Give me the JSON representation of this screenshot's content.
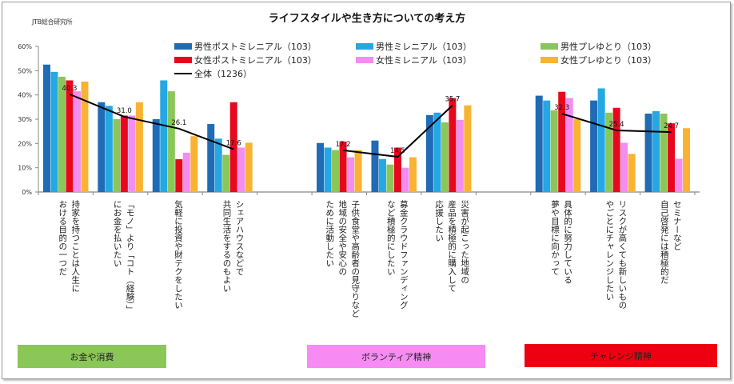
{
  "header": {
    "source": "JTB総合研究所",
    "title": "ライフスタイルや生き方についての考え方"
  },
  "chart_data": {
    "type": "bar",
    "title": "ライフスタイルや生き方についての考え方",
    "xlabel": "",
    "ylabel": "",
    "ylim": [
      0,
      60
    ],
    "yticks": [
      "0%",
      "10%",
      "20%",
      "30%",
      "40%",
      "50%",
      "60%"
    ],
    "grid": false,
    "legend_position": "top",
    "categories": [
      "持家を持つことは人生に\nおける目的の一つだ",
      "「モノ」より「コト（経験）」\nにお金を払いたい",
      "気軽に投資や財テクをしたい",
      "シェアハウスなどで\n共同生活をするのもよい",
      "",
      "子供食堂や高齢者の見守りなど\n地域の安全や安心の\nために活動したい",
      "募金クラウドファンディング\nなど積極的にしたい",
      "災害が起こった地域の\n産品を積極的に購入して\n応援したい",
      "",
      "具体的に努力している\n夢や目標に向かって",
      "リスクが高くても新しいもの\nやごとにチャレンジしたい",
      "セミナーなど\n自己啓発には積極的だ"
    ],
    "series": [
      {
        "name": "男性ポストミレニアル（103）",
        "color": "#1f6bb5",
        "kind": "bar",
        "values": [
          52.5,
          37.0,
          30.0,
          28.0,
          null,
          20.2,
          21.2,
          31.7,
          null,
          39.7,
          37.7,
          32.3
        ]
      },
      {
        "name": "男性ミレニアル（103）",
        "color": "#25a7e3",
        "kind": "bar",
        "values": [
          49.5,
          35.5,
          46.0,
          22.0,
          null,
          18.3,
          13.6,
          32.7,
          null,
          37.7,
          42.7,
          33.3
        ]
      },
      {
        "name": "男性プレゆとり（103）",
        "color": "#8bc659",
        "kind": "bar",
        "values": [
          47.5,
          30.0,
          41.5,
          15.3,
          null,
          17.3,
          11.3,
          28.7,
          null,
          33.7,
          32.7,
          32.3
        ]
      },
      {
        "name": "女性ポストミレニアル（103）",
        "color": "#e8081e",
        "kind": "bar",
        "values": [
          46.0,
          31.5,
          13.5,
          37.0,
          null,
          20.8,
          18.3,
          38.7,
          null,
          41.3,
          34.7,
          28.3
        ]
      },
      {
        "name": "女性ミレニアル（103）",
        "color": "#f38df0",
        "kind": "bar",
        "values": [
          41.5,
          31.5,
          16.2,
          18.3,
          null,
          14.3,
          10.0,
          29.7,
          null,
          38.7,
          20.3,
          13.7
        ]
      },
      {
        "name": "女性プレゆとり（103）",
        "color": "#f8b333",
        "kind": "bar",
        "values": [
          45.5,
          37.0,
          23.0,
          20.3,
          null,
          17.3,
          14.3,
          35.7,
          null,
          30.0,
          15.7,
          26.3
        ]
      },
      {
        "name": "全体（1236）",
        "color": "#000000",
        "kind": "line",
        "values": [
          40.3,
          31.0,
          26.1,
          17.6,
          null,
          17.2,
          14.5,
          35.7,
          null,
          32.3,
          25.4,
          24.7
        ],
        "labels": [
          "40.3",
          "31.0",
          "26.1",
          "17.6",
          null,
          "17.2",
          "14.5",
          "35.7",
          null,
          "32.3",
          "25.4",
          "24.7"
        ]
      }
    ],
    "sections": [
      {
        "label": "お金や消費",
        "color": "#8bc659"
      },
      {
        "label": "ボランティア精神",
        "color": "#f68cf3"
      },
      {
        "label": "チャレンジ精神",
        "color": "#ee0010"
      }
    ]
  }
}
